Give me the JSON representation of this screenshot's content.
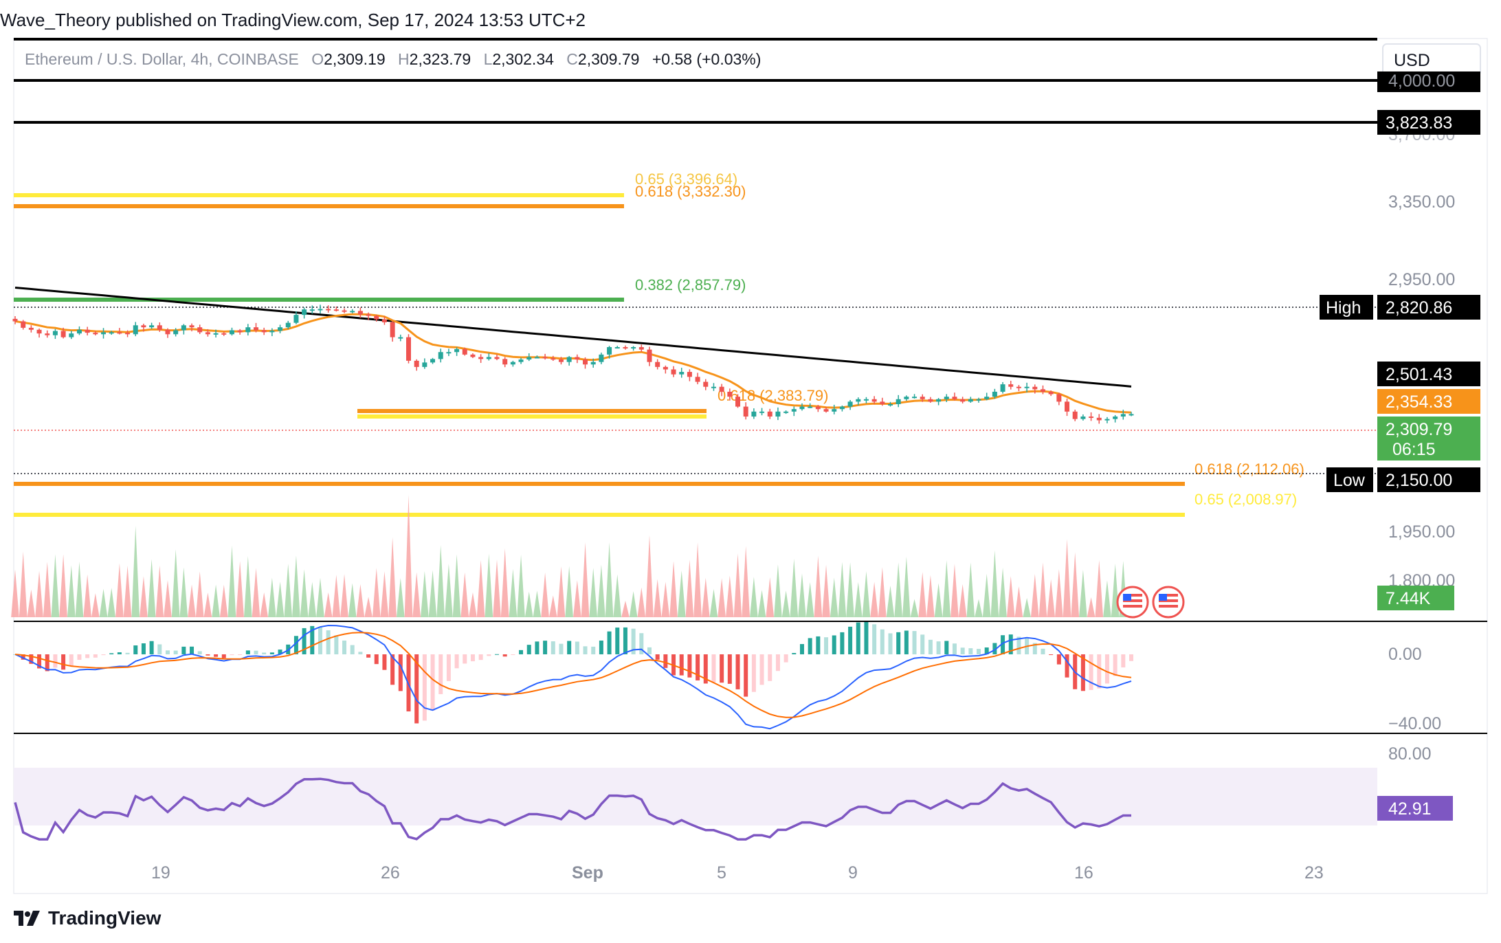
{
  "publisher": "Wave_Theory published on TradingView.com, Sep 17, 2024 13:53 UTC+2",
  "brand": "TradingView",
  "currency": "USD",
  "legend": {
    "symbol": "Ethereum / U.S. Dollar, 4h, COINBASE",
    "o_label": "O",
    "o": "2,309.19",
    "h_label": "H",
    "h": "2,323.79",
    "l_label": "L",
    "l": "2,302.34",
    "c_label": "C",
    "c": "2,309.79",
    "change": "+0.58 (+0.03%)"
  },
  "colors": {
    "up": "#26a69a",
    "down": "#ef5350",
    "ema_short": "#f7931a",
    "ema_long": "#000000",
    "fib_gold": "#f7931a",
    "fib_yellow": "#ffeb3b",
    "fib_green": "#4caf50",
    "macd": "#2962ff",
    "signal": "#ff6d00",
    "rsi": "#7e57c2"
  },
  "chart_data": [
    {
      "type": "candlestick",
      "timeframe": "4h",
      "x_ticks": [
        "19",
        "26",
        "Sep",
        "5",
        "9",
        "16",
        "23"
      ],
      "y_axis_labels": [
        "3,350.00",
        "2,950.00",
        "1,950.00",
        "1,800.00"
      ],
      "y_axis_hidden_labels": [
        "4,000.00",
        "3,700.00"
      ],
      "price_tags": {
        "level_top": "3,823.83",
        "high_label": "High",
        "high": "2,820.86",
        "ema_long": "2,501.43",
        "ema_short": "2,354.33",
        "last": "2,309.79",
        "countdown": "06:15",
        "low_label": "Low",
        "low": "2,150.00"
      },
      "fib_levels": [
        {
          "label": "0.65 (3,396.64)",
          "value": 3396.64
        },
        {
          "label": "0.618 (3,332.30)",
          "value": 3332.3
        },
        {
          "label": "0.382 (2,857.79)",
          "value": 2857.79
        },
        {
          "label": "0.618 (2,383.79)",
          "value": 2383.79
        },
        {
          "label": "0.65 (2,3…)",
          "value": 2375
        },
        {
          "label": "0.618 (2,112.06)",
          "value": 2112.06
        },
        {
          "label": "0.65 (2,008.97)",
          "value": 2008.97
        }
      ],
      "horizontal_lines": [
        4000,
        3823.83
      ],
      "close_series": [
        2764,
        2738,
        2730,
        2715,
        2708,
        2725,
        2700,
        2715,
        2730,
        2718,
        2712,
        2720,
        2720,
        2718,
        2712,
        2748,
        2740,
        2748,
        2730,
        2712,
        2728,
        2748,
        2740,
        2720,
        2712,
        2716,
        2712,
        2728,
        2720,
        2740,
        2728,
        2720,
        2726,
        2740,
        2758,
        2790,
        2812,
        2812,
        2814,
        2812,
        2808,
        2806,
        2806,
        2792,
        2786,
        2772,
        2760,
        2700,
        2700,
        2605,
        2580,
        2598,
        2612,
        2640,
        2640,
        2652,
        2630,
        2620,
        2612,
        2620,
        2612,
        2590,
        2600,
        2610,
        2620,
        2620,
        2615,
        2610,
        2600,
        2620,
        2610,
        2590,
        2600,
        2630,
        2660,
        2660,
        2658,
        2660,
        2650,
        2600,
        2580,
        2570,
        2550,
        2560,
        2540,
        2520,
        2500,
        2500,
        2480,
        2460,
        2420,
        2380,
        2400,
        2400,
        2380,
        2400,
        2400,
        2410,
        2420,
        2420,
        2410,
        2400,
        2410,
        2420,
        2440,
        2450,
        2450,
        2440,
        2430,
        2430,
        2450,
        2460,
        2460,
        2450,
        2440,
        2450,
        2460,
        2450,
        2440,
        2450,
        2450,
        2460,
        2480,
        2510,
        2500,
        2495,
        2500,
        2490,
        2480,
        2470,
        2440,
        2400,
        2370,
        2380,
        2375,
        2365,
        2370,
        2380,
        2390,
        2390
      ],
      "volume_unit": "K",
      "volume_last": "7.44K",
      "macd_y_labels": [
        "0.00",
        "−40.00"
      ],
      "rsi_y_labels": [
        "80.00"
      ],
      "rsi_last": "42.91"
    }
  ]
}
